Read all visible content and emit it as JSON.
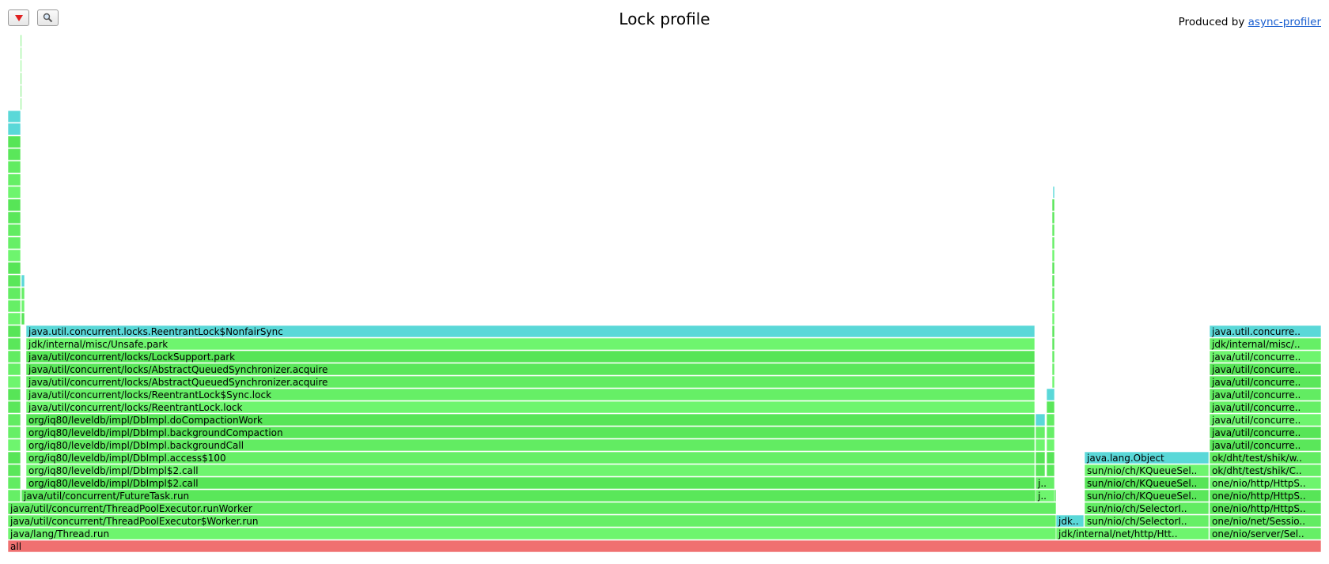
{
  "header": {
    "title": "Lock profile",
    "produced_by_label": "Produced by",
    "produced_by_link": "async-profiler",
    "reverse_icon": "triangle-down-icon",
    "search_icon": "magnifier-icon"
  },
  "palette": {
    "green": [
      "#57e557",
      "#62ec62",
      "#6ef56e",
      "#5ae75a",
      "#66ef66"
    ],
    "lock": "#5ad8d8",
    "root": "#f07070"
  },
  "frames": [
    {
      "label": "all",
      "type": "root"
    },
    {
      "label": "java/lang/Thread.run",
      "type": "java"
    },
    {
      "label": "java/util/concurrent/ThreadPoolExecutor$Worker.run",
      "type": "java"
    },
    {
      "label": "java/util/concurrent/ThreadPoolExecutor.runWorker",
      "type": "java"
    },
    {
      "label": "java/util/concurrent/FutureTask.run",
      "type": "java"
    },
    {
      "label": "org/iq80/leveldb/impl/DbImpl$2.call",
      "type": "java"
    },
    {
      "label": "org/iq80/leveldb/impl/DbImpl$2.call",
      "type": "java"
    },
    {
      "label": "org/iq80/leveldb/impl/DbImpl.access$100",
      "type": "java"
    },
    {
      "label": "org/iq80/leveldb/impl/DbImpl.backgroundCall",
      "type": "java"
    },
    {
      "label": "org/iq80/leveldb/impl/DbImpl.backgroundCompaction",
      "type": "java"
    },
    {
      "label": "org/iq80/leveldb/impl/DbImpl.doCompactionWork",
      "type": "java"
    },
    {
      "label": "java/util/concurrent/locks/ReentrantLock.lock",
      "type": "java"
    },
    {
      "label": "java/util/concurrent/locks/ReentrantLock$Sync.lock",
      "type": "java"
    },
    {
      "label": "java/util/concurrent/locks/AbstractQueuedSynchronizer.acquire",
      "type": "java"
    },
    {
      "label": "java/util/concurrent/locks/AbstractQueuedSynchronizer.acquire",
      "type": "java"
    },
    {
      "label": "java/util/concurrent/locks/LockSupport.park",
      "type": "java"
    },
    {
      "label": "jdk/internal/misc/Unsafe.park",
      "type": "java"
    },
    {
      "label": "java.util.concurrent.locks.ReentrantLock$NonfairSync",
      "type": "lock"
    },
    {
      "label": "j..",
      "type": "java"
    },
    {
      "label": "j..",
      "type": "java"
    },
    {
      "label": "jdk..",
      "type": "lock"
    },
    {
      "label": "jdk/internal/net/http/Htt..",
      "type": "java"
    },
    {
      "label": "sun/nio/ch/SelectorI..",
      "type": "java"
    },
    {
      "label": "sun/nio/ch/SelectorI..",
      "type": "java"
    },
    {
      "label": "sun/nio/ch/KQueueSel..",
      "type": "java"
    },
    {
      "label": "sun/nio/ch/KQueueSel..",
      "type": "java"
    },
    {
      "label": "sun/nio/ch/KQueueSel..",
      "type": "java"
    },
    {
      "label": "java.lang.Object",
      "type": "lock"
    },
    {
      "label": "one/nio/server/Sel..",
      "type": "java"
    },
    {
      "label": "one/nio/net/Sessio..",
      "type": "java"
    },
    {
      "label": "one/nio/http/HttpS..",
      "type": "java"
    },
    {
      "label": "one/nio/http/HttpS..",
      "type": "java"
    },
    {
      "label": "one/nio/http/HttpS..",
      "type": "java"
    },
    {
      "label": "ok/dht/test/shik/C..",
      "type": "java"
    },
    {
      "label": "ok/dht/test/shik/w..",
      "type": "java"
    },
    {
      "label": "java/util/concurre..",
      "type": "java"
    },
    {
      "label": "java/util/concurre..",
      "type": "java"
    },
    {
      "label": "java/util/concurre..",
      "type": "java"
    },
    {
      "label": "java/util/concurre..",
      "type": "java"
    },
    {
      "label": "java/util/concurre..",
      "type": "java"
    },
    {
      "label": "java/util/concurre..",
      "type": "java"
    },
    {
      "label": "java/util/concurre..",
      "type": "java"
    },
    {
      "label": "java/util/concurre..",
      "type": "java"
    },
    {
      "label": "jdk/internal/misc/..",
      "type": "java"
    },
    {
      "label": "java.util.concurre..",
      "type": "lock"
    }
  ]
}
